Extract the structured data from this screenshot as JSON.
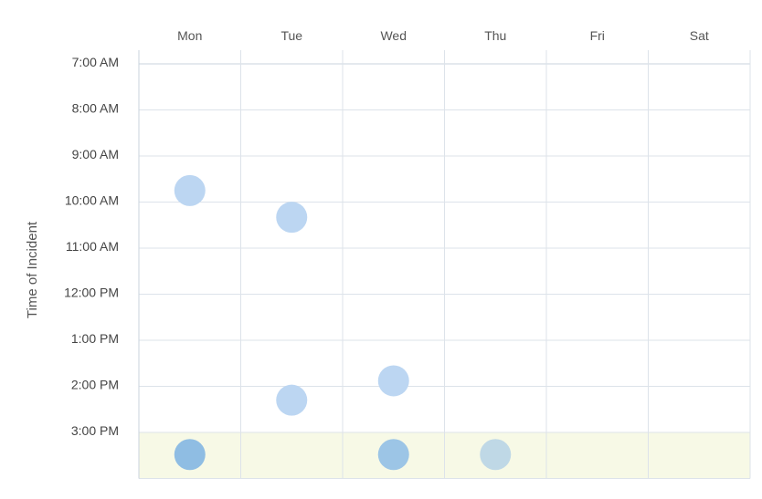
{
  "chart_data": {
    "type": "scatter",
    "title": "",
    "ylabel": "Time of Incident",
    "xlabel": "",
    "x_categories": [
      "Mon",
      "Tue",
      "Wed",
      "Thu",
      "Fri",
      "Sat"
    ],
    "y_ticks": [
      "7:00 AM",
      "8:00 AM",
      "9:00 AM",
      "10:00 AM",
      "11:00 AM",
      "12:00 PM",
      "1:00 PM",
      "2:00 PM",
      "3:00 PM"
    ],
    "ylim_hours": [
      7,
      16
    ],
    "grid": true,
    "highlight_band_hours": [
      15,
      16
    ],
    "points": [
      {
        "day": "Mon",
        "hour": 9.75,
        "color": "#bcd6f2"
      },
      {
        "day": "Tue",
        "hour": 10.33,
        "color": "#bcd6f2"
      },
      {
        "day": "Wed",
        "hour": 13.88,
        "color": "#bcd6f2"
      },
      {
        "day": "Tue",
        "hour": 14.3,
        "color": "#bcd6f2"
      },
      {
        "day": "Mon",
        "hour": 15.48,
        "color": "#8fbde3"
      },
      {
        "day": "Wed",
        "hour": 15.48,
        "color": "#9cc5e6"
      },
      {
        "day": "Thu",
        "hour": 15.48,
        "color": "#bfd8e6"
      }
    ]
  },
  "colors": {
    "grid": "#dde3ea",
    "axis": "#c9d3dd",
    "band": "#f7f9e6"
  }
}
